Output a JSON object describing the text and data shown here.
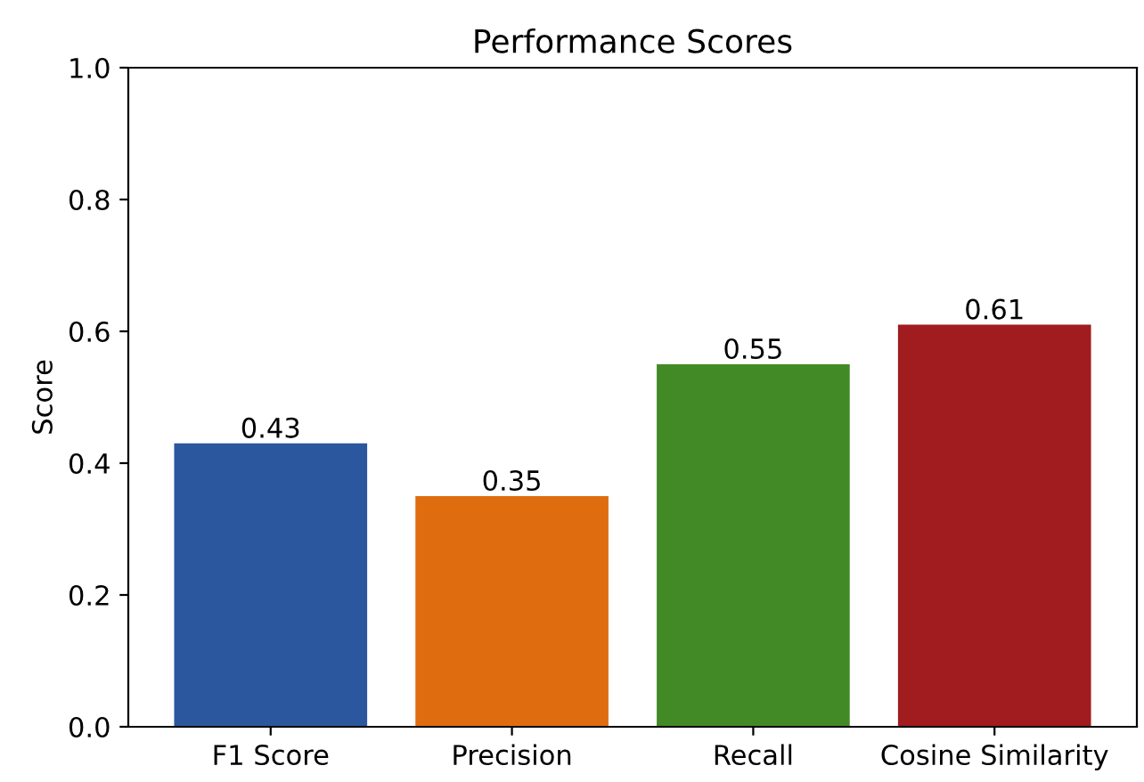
{
  "chart_data": {
    "type": "bar",
    "title": "Performance Scores",
    "ylabel": "Score",
    "categories": [
      "F1 Score",
      "Precision",
      "Recall",
      "Cosine Similarity"
    ],
    "values": [
      0.43,
      0.35,
      0.55,
      0.61
    ],
    "colors": [
      "#2b579e",
      "#df6d10",
      "#428a25",
      "#a01c1f"
    ],
    "ylim": [
      0.0,
      1.0
    ],
    "yticks": [
      {
        "value": 0.0,
        "label": "0.0"
      },
      {
        "value": 0.2,
        "label": "0.2"
      },
      {
        "value": 0.4,
        "label": "0.4"
      },
      {
        "value": 0.6,
        "label": "0.6"
      },
      {
        "value": 0.8,
        "label": "0.8"
      },
      {
        "value": 1.0,
        "label": "1.0"
      }
    ],
    "data_labels": true,
    "grid": false,
    "legend": false
  }
}
